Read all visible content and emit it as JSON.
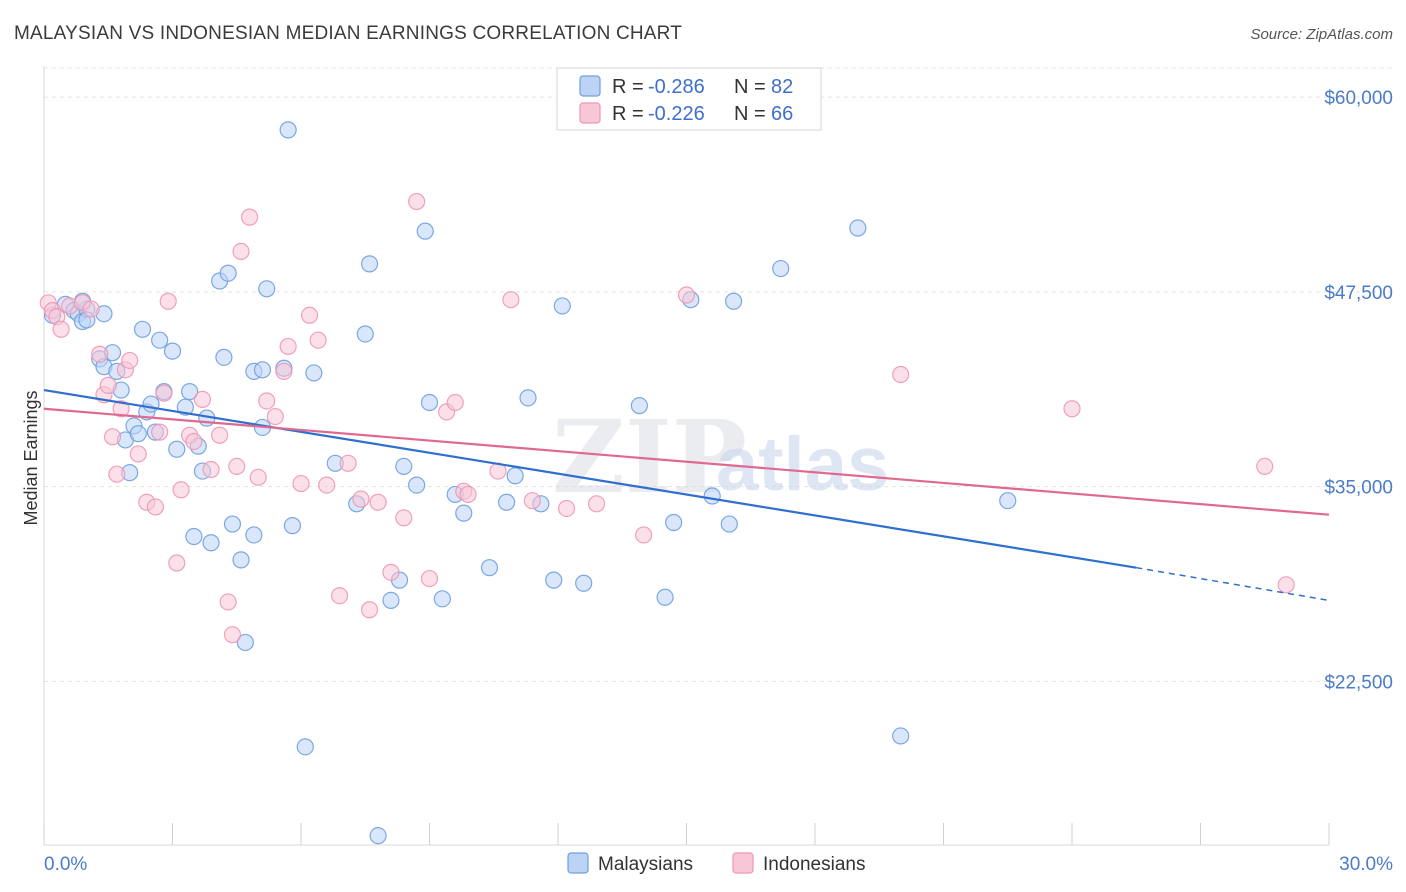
{
  "chart_data": {
    "type": "scatter",
    "title": "MALAYSIAN VS INDONESIAN MEDIAN EARNINGS CORRELATION CHART",
    "source": "Source: ZipAtlas.com",
    "xlabel": "",
    "ylabel": "Median Earnings",
    "xlim": [
      0,
      30
    ],
    "ylim": [
      12000,
      62000
    ],
    "x_tick_labels": {
      "min": "0.0%",
      "max": "30.0%"
    },
    "y_ticks": [
      {
        "value": 60000,
        "label": "$60,000"
      },
      {
        "value": 47500,
        "label": "$47,500"
      },
      {
        "value": 35000,
        "label": "$35,000"
      },
      {
        "value": 22500,
        "label": "$22,500"
      }
    ],
    "watermark": {
      "part1": "ZIP",
      "part2": "atlas"
    },
    "legend": [
      {
        "r_label": "R = ",
        "r_value": "-0.286",
        "n_label": "N = ",
        "n_value": "82"
      },
      {
        "r_label": "R = ",
        "r_value": "-0.226",
        "n_label": "N = ",
        "n_value": "66"
      }
    ],
    "series": [
      {
        "name": "Malaysians",
        "color": "#6f9fe0",
        "fill": "#bcd3f5",
        "line_color": "#2f6fcd",
        "trend": {
          "x0": 0,
          "y0": 41200,
          "x1": 25.5,
          "y1": 29800,
          "x_dash_end": 30,
          "y_dash_end": 27700
        },
        "points": [
          [
            0.2,
            46000
          ],
          [
            0.5,
            46700
          ],
          [
            0.7,
            46300
          ],
          [
            0.8,
            46100
          ],
          [
            0.9,
            45600
          ],
          [
            1.0,
            46400
          ],
          [
            0.9,
            46900
          ],
          [
            1.0,
            45700
          ],
          [
            1.3,
            43200
          ],
          [
            1.4,
            42700
          ],
          [
            1.6,
            43600
          ],
          [
            1.4,
            46100
          ],
          [
            1.7,
            42400
          ],
          [
            1.8,
            41200
          ],
          [
            1.9,
            38000
          ],
          [
            2.0,
            35900
          ],
          [
            2.1,
            38900
          ],
          [
            2.2,
            38400
          ],
          [
            2.3,
            45100
          ],
          [
            2.4,
            39800
          ],
          [
            2.5,
            40300
          ],
          [
            2.6,
            38500
          ],
          [
            2.7,
            44400
          ],
          [
            2.8,
            41100
          ],
          [
            3.0,
            43700
          ],
          [
            3.1,
            37400
          ],
          [
            3.3,
            40100
          ],
          [
            3.4,
            41100
          ],
          [
            3.5,
            31800
          ],
          [
            3.6,
            37600
          ],
          [
            3.7,
            36000
          ],
          [
            3.8,
            39400
          ],
          [
            3.9,
            31400
          ],
          [
            4.1,
            48200
          ],
          [
            4.2,
            43300
          ],
          [
            4.3,
            48700
          ],
          [
            4.4,
            32600
          ],
          [
            4.6,
            30300
          ],
          [
            4.7,
            25000
          ],
          [
            4.9,
            31900
          ],
          [
            4.9,
            42400
          ],
          [
            5.1,
            42500
          ],
          [
            5.1,
            38800
          ],
          [
            5.2,
            47700
          ],
          [
            5.6,
            42600
          ],
          [
            5.7,
            57900
          ],
          [
            5.8,
            32500
          ],
          [
            6.1,
            18300
          ],
          [
            6.3,
            42300
          ],
          [
            6.8,
            36500
          ],
          [
            7.3,
            33900
          ],
          [
            7.5,
            44800
          ],
          [
            7.6,
            49300
          ],
          [
            7.8,
            12600
          ],
          [
            8.1,
            27700
          ],
          [
            8.3,
            29000
          ],
          [
            8.4,
            36300
          ],
          [
            8.7,
            35100
          ],
          [
            8.9,
            51400
          ],
          [
            9.0,
            40400
          ],
          [
            9.3,
            27800
          ],
          [
            9.6,
            34500
          ],
          [
            9.8,
            33300
          ],
          [
            10.4,
            29800
          ],
          [
            10.8,
            34000
          ],
          [
            11.0,
            35700
          ],
          [
            11.3,
            40700
          ],
          [
            11.6,
            33900
          ],
          [
            11.9,
            29000
          ],
          [
            12.1,
            46600
          ],
          [
            12.6,
            28800
          ],
          [
            13.9,
            40200
          ],
          [
            14.5,
            27900
          ],
          [
            14.7,
            32700
          ],
          [
            15.1,
            47000
          ],
          [
            15.6,
            34400
          ],
          [
            16.0,
            32600
          ],
          [
            16.1,
            46900
          ],
          [
            17.2,
            49000
          ],
          [
            19.0,
            51600
          ],
          [
            20.0,
            19000
          ],
          [
            22.5,
            34100
          ]
        ]
      },
      {
        "name": "Indonesians",
        "color": "#ee97b5",
        "fill": "#f8c7d7",
        "line_color": "#e0698f",
        "trend": {
          "x0": 0,
          "y0": 40000,
          "x1": 30,
          "y1": 33200
        },
        "points": [
          [
            0.1,
            46800
          ],
          [
            0.2,
            46300
          ],
          [
            0.3,
            45900
          ],
          [
            0.4,
            45100
          ],
          [
            0.6,
            46600
          ],
          [
            0.9,
            46800
          ],
          [
            1.1,
            46400
          ],
          [
            1.3,
            43500
          ],
          [
            1.4,
            40900
          ],
          [
            1.5,
            41500
          ],
          [
            1.6,
            38200
          ],
          [
            1.7,
            35800
          ],
          [
            1.8,
            40000
          ],
          [
            1.9,
            42500
          ],
          [
            2.0,
            43100
          ],
          [
            2.2,
            37100
          ],
          [
            2.4,
            34000
          ],
          [
            2.6,
            33700
          ],
          [
            2.7,
            38500
          ],
          [
            2.8,
            41000
          ],
          [
            2.9,
            46900
          ],
          [
            3.1,
            30100
          ],
          [
            3.2,
            34800
          ],
          [
            3.4,
            38300
          ],
          [
            3.5,
            37900
          ],
          [
            3.7,
            40600
          ],
          [
            3.9,
            36100
          ],
          [
            4.1,
            38300
          ],
          [
            4.3,
            27600
          ],
          [
            4.4,
            25500
          ],
          [
            4.5,
            36300
          ],
          [
            4.6,
            50100
          ],
          [
            4.8,
            52300
          ],
          [
            5.0,
            35600
          ],
          [
            5.2,
            40500
          ],
          [
            5.4,
            39500
          ],
          [
            5.6,
            42400
          ],
          [
            5.7,
            44000
          ],
          [
            6.0,
            35200
          ],
          [
            6.2,
            46000
          ],
          [
            6.4,
            44400
          ],
          [
            6.6,
            35100
          ],
          [
            6.9,
            28000
          ],
          [
            7.1,
            36500
          ],
          [
            7.4,
            34200
          ],
          [
            7.6,
            27100
          ],
          [
            7.8,
            34000
          ],
          [
            8.1,
            29500
          ],
          [
            8.4,
            33000
          ],
          [
            8.7,
            53300
          ],
          [
            9.0,
            29100
          ],
          [
            9.4,
            39800
          ],
          [
            9.6,
            40400
          ],
          [
            9.8,
            34700
          ],
          [
            9.9,
            34500
          ],
          [
            10.6,
            36000
          ],
          [
            10.9,
            47000
          ],
          [
            11.4,
            34100
          ],
          [
            12.2,
            33600
          ],
          [
            12.9,
            33900
          ],
          [
            14.0,
            31900
          ],
          [
            15.0,
            47300
          ],
          [
            20.0,
            42200
          ],
          [
            24.0,
            40000
          ],
          [
            28.5,
            36300
          ],
          [
            29.0,
            28700
          ]
        ]
      }
    ]
  }
}
